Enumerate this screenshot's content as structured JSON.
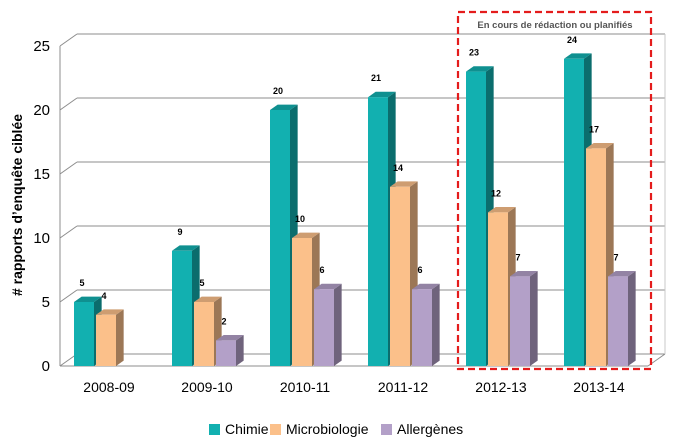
{
  "chart_data": {
    "type": "bar",
    "categories": [
      "2008-09",
      "2009-10",
      "2010-11",
      "2011-12",
      "2012-13",
      "2013-14"
    ],
    "series": [
      {
        "name": "Chimie",
        "values": [
          5,
          9,
          20,
          21,
          23,
          24
        ],
        "color": "#12b0b0"
      },
      {
        "name": "Microbiologie",
        "values": [
          4,
          5,
          10,
          14,
          12,
          17
        ],
        "color": "#fbc08a"
      },
      {
        "name": "Allergènes",
        "values": [
          null,
          2,
          6,
          6,
          7,
          7
        ],
        "color": "#b3a0c8"
      }
    ],
    "ylabel": "# rapports d’enquête ciblée",
    "ylim": [
      0,
      25
    ],
    "yticks": [
      0,
      5,
      10,
      15,
      20,
      25
    ],
    "grid": true,
    "legend_position": "bottom",
    "annotation": {
      "text": "En cours de rédaction ou planifiés",
      "categories": [
        "2012-13",
        "2013-14"
      ],
      "border_color": "#e41c1c"
    }
  }
}
